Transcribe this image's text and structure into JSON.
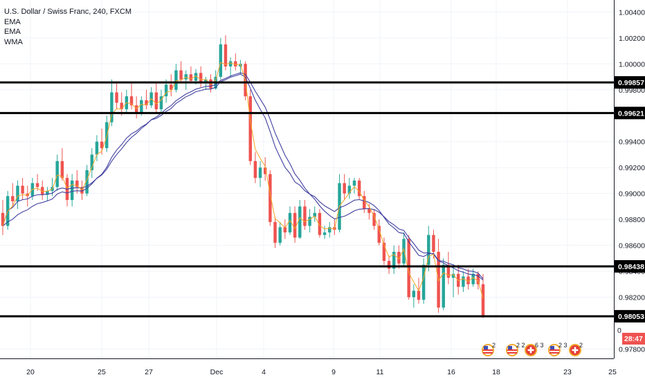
{
  "legend": {
    "title": "U.S. Dollar / Swiss Franc, 240, FXCM",
    "indicators": [
      "EMA",
      "EMA",
      "WMA"
    ]
  },
  "colors": {
    "up": "#26a69a",
    "down": "#ef5350",
    "ema_fast": "#f5a623",
    "ema_slow": "#3f3f9f",
    "wma": "#3f3f9f",
    "hline": "#000000",
    "grid": "#f0f3fa",
    "countdown_bg": "#ef5350"
  },
  "price_axis": {
    "ticks": [
      "1.00400",
      "1.00200",
      "1.00000",
      "0.99800",
      "0.99600",
      "0.99400",
      "0.99200",
      "0.99000",
      "0.98800",
      "0.98600",
      "0.98400",
      "0.98200",
      "0.97800"
    ],
    "countdown": "28:47",
    "partial_tick": "0"
  },
  "time_axis": {
    "ticks": [
      "20",
      "25",
      "27",
      "Dec",
      "4",
      "9",
      "11",
      "16",
      "18",
      "23",
      "25"
    ]
  },
  "events": [
    {
      "icon": "us-flag-icon",
      "count": "2"
    },
    {
      "icon": "us-flag-icon",
      "count": "2 2"
    },
    {
      "icon": "swiss-flag-icon",
      "count": "6 3"
    },
    {
      "icon": "us-flag-icon",
      "count": "2 3"
    },
    {
      "icon": "swiss-flag-icon",
      "count": "2"
    }
  ],
  "chart_data": {
    "type": "candlestick",
    "title": "U.S. Dollar / Swiss Franc, 240, FXCM",
    "ylim": [
      0.9776,
      1.0045
    ],
    "horizontal_lines": [
      0.99857,
      0.99621,
      0.98438,
      0.98053
    ],
    "candles": [
      [
        0.9885,
        0.9895,
        0.9868,
        0.9875
      ],
      [
        0.9875,
        0.9902,
        0.9872,
        0.9898
      ],
      [
        0.9898,
        0.9908,
        0.989,
        0.9894
      ],
      [
        0.9894,
        0.991,
        0.9888,
        0.9906
      ],
      [
        0.9906,
        0.9912,
        0.9895,
        0.99
      ],
      [
        0.99,
        0.9906,
        0.989,
        0.9898
      ],
      [
        0.9898,
        0.9912,
        0.9895,
        0.9908
      ],
      [
        0.9908,
        0.9915,
        0.9902,
        0.9905
      ],
      [
        0.9905,
        0.991,
        0.9895,
        0.9899
      ],
      [
        0.9899,
        0.9905,
        0.9894,
        0.9902
      ],
      [
        0.9902,
        0.9912,
        0.9898,
        0.9905
      ],
      [
        0.9905,
        0.993,
        0.9902,
        0.9925
      ],
      [
        0.9925,
        0.9935,
        0.991,
        0.9912
      ],
      [
        0.9912,
        0.9915,
        0.989,
        0.9895
      ],
      [
        0.9895,
        0.9915,
        0.989,
        0.991
      ],
      [
        0.991,
        0.9918,
        0.99,
        0.9905
      ],
      [
        0.9905,
        0.991,
        0.9895,
        0.99
      ],
      [
        0.99,
        0.9922,
        0.9898,
        0.9918
      ],
      [
        0.9918,
        0.9935,
        0.9912,
        0.993
      ],
      [
        0.993,
        0.9945,
        0.9925,
        0.994
      ],
      [
        0.994,
        0.995,
        0.993,
        0.9935
      ],
      [
        0.9935,
        0.996,
        0.9932,
        0.9955
      ],
      [
        0.9955,
        0.9988,
        0.9952,
        0.9978
      ],
      [
        0.9978,
        0.9985,
        0.9965,
        0.997
      ],
      [
        0.997,
        0.9978,
        0.996,
        0.9965
      ],
      [
        0.9965,
        0.998,
        0.9962,
        0.9975
      ],
      [
        0.9975,
        0.9985,
        0.9965,
        0.9968
      ],
      [
        0.9968,
        0.9975,
        0.9958,
        0.9962
      ],
      [
        0.9962,
        0.9975,
        0.996,
        0.9972
      ],
      [
        0.9972,
        0.998,
        0.9965,
        0.9968
      ],
      [
        0.9968,
        0.9982,
        0.9966,
        0.9978
      ],
      [
        0.9978,
        0.9985,
        0.9962,
        0.9965
      ],
      [
        0.9965,
        0.998,
        0.9962,
        0.9975
      ],
      [
        0.9975,
        0.9988,
        0.997,
        0.9984
      ],
      [
        0.9984,
        0.9992,
        0.9975,
        0.998
      ],
      [
        0.998,
        1.0,
        0.9978,
        0.9995
      ],
      [
        0.9995,
        1.0002,
        0.9985,
        0.9988
      ],
      [
        0.9988,
        0.9995,
        0.998,
        0.9992
      ],
      [
        0.9992,
        0.9998,
        0.9985,
        0.9987
      ],
      [
        0.9987,
        0.9996,
        0.9984,
        0.9993
      ],
      [
        0.9993,
        0.9998,
        0.9982,
        0.9985
      ],
      [
        0.9985,
        0.999,
        0.998,
        0.9988
      ],
      [
        0.9988,
        0.9992,
        0.9978,
        0.9981
      ],
      [
        0.9981,
        0.9995,
        0.998,
        0.999
      ],
      [
        0.999,
        1.002,
        0.9988,
        1.0015
      ],
      [
        1.0015,
        1.0022,
        0.9995,
        0.9998
      ],
      [
        0.9998,
        1.0005,
        0.999,
        1.0002
      ],
      [
        1.0002,
        1.0008,
        0.9995,
        0.9998
      ],
      [
        0.9998,
        1.0003,
        0.9992,
        1.0
      ],
      [
        1.0,
        1.0002,
        0.9972,
        0.9975
      ],
      [
        0.9975,
        0.998,
        0.9922,
        0.9925
      ],
      [
        0.9925,
        0.9932,
        0.9908,
        0.9912
      ],
      [
        0.9912,
        0.9925,
        0.9905,
        0.992
      ],
      [
        0.992,
        0.9928,
        0.991,
        0.9915
      ],
      [
        0.9915,
        0.9918,
        0.9875,
        0.9878
      ],
      [
        0.9878,
        0.9882,
        0.9858,
        0.9862
      ],
      [
        0.9862,
        0.9878,
        0.986,
        0.9874
      ],
      [
        0.9874,
        0.988,
        0.9865,
        0.987
      ],
      [
        0.987,
        0.989,
        0.9868,
        0.9885
      ],
      [
        0.9885,
        0.989,
        0.9862,
        0.9866
      ],
      [
        0.9866,
        0.9895,
        0.9865,
        0.989
      ],
      [
        0.989,
        0.9895,
        0.9872,
        0.9875
      ],
      [
        0.9875,
        0.9888,
        0.987,
        0.9882
      ],
      [
        0.9882,
        0.989,
        0.9878,
        0.9885
      ],
      [
        0.9885,
        0.9888,
        0.9866,
        0.9868
      ],
      [
        0.9868,
        0.9875,
        0.9865,
        0.987
      ],
      [
        0.987,
        0.9878,
        0.9866,
        0.9874
      ],
      [
        0.9874,
        0.988,
        0.9868,
        0.9872
      ],
      [
        0.9872,
        0.9915,
        0.987,
        0.9908
      ],
      [
        0.9908,
        0.9915,
        0.9895,
        0.99
      ],
      [
        0.99,
        0.9912,
        0.9896,
        0.9906
      ],
      [
        0.9906,
        0.9912,
        0.99,
        0.991
      ],
      [
        0.991,
        0.9912,
        0.9895,
        0.9898
      ],
      [
        0.9898,
        0.9902,
        0.9885,
        0.9888
      ],
      [
        0.9888,
        0.9892,
        0.988,
        0.9885
      ],
      [
        0.9885,
        0.9888,
        0.9872,
        0.9875
      ],
      [
        0.9875,
        0.988,
        0.986,
        0.9862
      ],
      [
        0.9862,
        0.9866,
        0.9845,
        0.9848
      ],
      [
        0.9848,
        0.9852,
        0.9838,
        0.9842
      ],
      [
        0.9842,
        0.986,
        0.9838,
        0.9855
      ],
      [
        0.9855,
        0.986,
        0.9842,
        0.9846
      ],
      [
        0.9846,
        0.987,
        0.9844,
        0.9865
      ],
      [
        0.9865,
        0.9868,
        0.9818,
        0.982
      ],
      [
        0.982,
        0.983,
        0.9812,
        0.9825
      ],
      [
        0.9825,
        0.9835,
        0.9815,
        0.9818
      ],
      [
        0.9818,
        0.985,
        0.9815,
        0.9845
      ],
      [
        0.9845,
        0.9875,
        0.984,
        0.9868
      ],
      [
        0.9868,
        0.9872,
        0.985,
        0.9855
      ],
      [
        0.9855,
        0.9865,
        0.9808,
        0.9812
      ],
      [
        0.9812,
        0.985,
        0.981,
        0.9845
      ],
      [
        0.9845,
        0.9855,
        0.983,
        0.9835
      ],
      [
        0.9835,
        0.9845,
        0.982,
        0.9838
      ],
      [
        0.9838,
        0.9845,
        0.9822,
        0.9828
      ],
      [
        0.9828,
        0.984,
        0.9824,
        0.9836
      ],
      [
        0.9836,
        0.9842,
        0.9826,
        0.983
      ],
      [
        0.983,
        0.9842,
        0.9828,
        0.9838
      ],
      [
        0.9838,
        0.984,
        0.9826,
        0.983
      ],
      [
        0.983,
        0.9838,
        0.9804,
        0.9806
      ]
    ]
  }
}
